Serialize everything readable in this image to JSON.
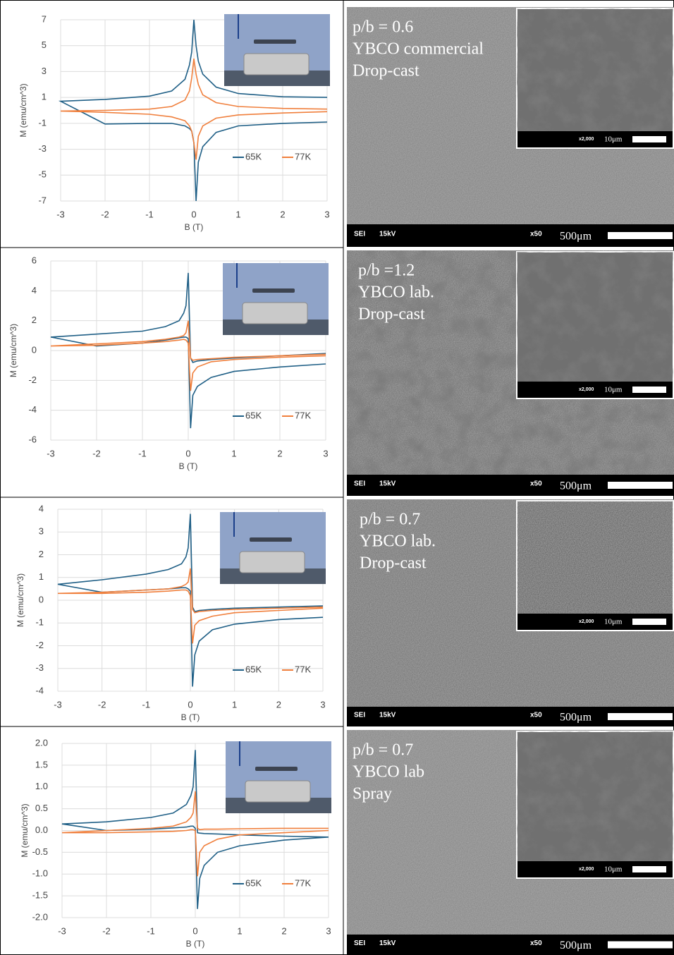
{
  "chart_data": [
    {
      "type": "line",
      "xlabel": "B (T)",
      "ylabel": "M (emu/cm^3)",
      "x": [
        3,
        2,
        1,
        0.5,
        0.2,
        0.1,
        0.05,
        0,
        -0.05,
        -0.1,
        -0.2,
        -0.5,
        -1,
        -2,
        -3,
        -2,
        -1,
        -0.5,
        -0.2,
        -0.1,
        -0.05,
        0,
        0.05,
        0.1,
        0.2,
        0.5,
        1,
        2,
        3
      ],
      "series": [
        {
          "name": "65K",
          "color": "#1f5f86",
          "values": [
            1.0,
            1.05,
            1.3,
            1.8,
            2.8,
            3.8,
            5,
            7,
            4.5,
            3.5,
            2.4,
            1.5,
            1.1,
            0.85,
            0.7,
            -1.05,
            -1.0,
            -1.0,
            -1.2,
            -1.4,
            -1.6,
            -2.5,
            -7,
            -4,
            -2.8,
            -1.7,
            -1.2,
            -1.0,
            -0.9
          ]
        },
        {
          "name": "77K",
          "color": "#f07f3c",
          "values": [
            0.1,
            0.15,
            0.3,
            0.6,
            1.2,
            2,
            2.8,
            4,
            2.5,
            1.5,
            0.8,
            0.3,
            0.1,
            0,
            -0.05,
            -0.15,
            -0.3,
            -0.5,
            -0.8,
            -1.2,
            -1.6,
            -2.5,
            -3.8,
            -2,
            -1.2,
            -0.6,
            -0.35,
            -0.2,
            -0.1
          ]
        }
      ],
      "xlim": [
        -3,
        3
      ],
      "xticks": [
        -3,
        -2,
        -1,
        0,
        1,
        2,
        3
      ],
      "ylim": [
        -7,
        7
      ],
      "yticks": [
        -7,
        -5,
        -3,
        -1,
        1,
        3,
        5,
        7
      ],
      "grid": true,
      "legend": "lower right"
    },
    {
      "type": "line",
      "xlabel": "B (T)",
      "ylabel": "M (emu/cm^3)",
      "x": [
        3,
        2,
        1,
        0.5,
        0.2,
        0.1,
        0.05,
        0,
        -0.05,
        -0.1,
        -0.2,
        -0.5,
        -1,
        -2,
        -3,
        -2,
        -1,
        -0.5,
        -0.2,
        -0.1,
        -0.05,
        0,
        0.05,
        0.1,
        0.2,
        0.5,
        1,
        2,
        3
      ],
      "series": [
        {
          "name": "65K",
          "color": "#1f5f86",
          "values": [
            -0.2,
            -0.35,
            -0.5,
            -0.6,
            -0.7,
            -0.8,
            -0.5,
            5.2,
            3,
            2.5,
            2,
            1.6,
            1.3,
            1.1,
            0.9,
            0.3,
            0.5,
            0.7,
            0.85,
            0.9,
            0.9,
            0.8,
            -5.2,
            -3,
            -2.4,
            -1.8,
            -1.4,
            -1.1,
            -0.9
          ]
        },
        {
          "name": "77K",
          "color": "#f07f3c",
          "values": [
            -0.25,
            -0.35,
            -0.45,
            -0.55,
            -0.6,
            -0.65,
            -0.5,
            2,
            1.2,
            1,
            0.9,
            0.75,
            0.6,
            0.45,
            0.3,
            0.35,
            0.5,
            0.6,
            0.7,
            0.75,
            0.7,
            0.5,
            -2.7,
            -1.5,
            -1.1,
            -0.75,
            -0.6,
            -0.45,
            -0.35
          ]
        }
      ],
      "xlim": [
        -3,
        3
      ],
      "xticks": [
        -3,
        -2,
        -1,
        0,
        1,
        2,
        3
      ],
      "ylim": [
        -6,
        6
      ],
      "yticks": [
        -6,
        -4,
        -2,
        0,
        2,
        4,
        6
      ],
      "grid": true,
      "legend": "lower right"
    },
    {
      "type": "line",
      "xlabel": "B (T)",
      "ylabel": "M (emu/cm^3)",
      "x": [
        3,
        2,
        1,
        0.5,
        0.2,
        0.1,
        0.05,
        0,
        -0.05,
        -0.1,
        -0.2,
        -0.5,
        -1,
        -2,
        -3,
        -2,
        -1,
        -0.5,
        -0.2,
        -0.1,
        -0.05,
        0,
        0.05,
        0.1,
        0.2,
        0.5,
        1,
        2,
        3
      ],
      "series": [
        {
          "name": "65K",
          "color": "#1f5f86",
          "values": [
            -0.25,
            -0.3,
            -0.35,
            -0.4,
            -0.45,
            -0.5,
            -0.3,
            3.8,
            2.3,
            1.9,
            1.6,
            1.35,
            1.15,
            0.9,
            0.7,
            0.35,
            0.45,
            0.5,
            0.55,
            0.55,
            0.5,
            0.4,
            -3.8,
            -2.4,
            -1.8,
            -1.3,
            -1.05,
            -0.85,
            -0.75
          ]
        },
        {
          "name": "77K",
          "color": "#f07f3c",
          "values": [
            -0.3,
            -0.35,
            -0.4,
            -0.45,
            -0.5,
            -0.55,
            -0.4,
            1.4,
            0.8,
            0.7,
            0.6,
            0.5,
            0.45,
            0.35,
            0.3,
            0.3,
            0.35,
            0.4,
            0.45,
            0.45,
            0.4,
            0.2,
            -1.9,
            -1.1,
            -0.9,
            -0.7,
            -0.55,
            -0.45,
            -0.35
          ]
        }
      ],
      "xlim": [
        -3,
        3
      ],
      "xticks": [
        -3,
        -2,
        -1,
        0,
        1,
        2,
        3
      ],
      "ylim": [
        -4,
        4
      ],
      "yticks": [
        -4,
        -3,
        -2,
        -1,
        0,
        1,
        2,
        3,
        4
      ],
      "grid": true,
      "legend": "lower right"
    },
    {
      "type": "line",
      "xlabel": "B (T)",
      "ylabel": "M (emu/cm^3)",
      "x": [
        3,
        2,
        1,
        0.5,
        0.2,
        0.1,
        0.05,
        0,
        -0.05,
        -0.1,
        -0.2,
        -0.5,
        -1,
        -2,
        -3,
        -2,
        -1,
        -0.5,
        -0.2,
        -0.1,
        -0.05,
        0,
        0.05,
        0.1,
        0.2,
        0.5,
        1,
        2,
        3
      ],
      "series": [
        {
          "name": "65K",
          "color": "#1f5f86",
          "values": [
            -0.15,
            -0.13,
            -0.1,
            -0.08,
            -0.07,
            -0.06,
            -0.05,
            1.85,
            1.0,
            0.8,
            0.6,
            0.4,
            0.3,
            0.2,
            0.15,
            0.0,
            0.03,
            0.06,
            0.08,
            0.1,
            0.1,
            0.05,
            -1.8,
            -1.1,
            -0.8,
            -0.5,
            -0.35,
            -0.22,
            -0.15
          ]
        },
        {
          "name": "77K",
          "color": "#f07f3c",
          "values": [
            0.05,
            0.05,
            0.04,
            0.03,
            0.03,
            0.02,
            0.05,
            0.9,
            0.4,
            0.3,
            0.2,
            0.1,
            0.05,
            0.0,
            -0.05,
            -0.05,
            -0.03,
            -0.02,
            0,
            0.02,
            0.02,
            0.0,
            -1.05,
            -0.5,
            -0.35,
            -0.2,
            -0.1,
            -0.05,
            0.0
          ]
        }
      ],
      "xlim": [
        -3,
        3
      ],
      "xticks": [
        -3,
        -2,
        -1,
        0,
        1,
        2,
        3
      ],
      "ylim": [
        -2,
        2
      ],
      "yticks": [
        {
          "value": -2,
          "label": "-2.0"
        },
        -1.5,
        {
          "value": -1,
          "label": "-1.0"
        },
        -0.5,
        {
          "value": 0,
          "label": "0.0"
        },
        0.5,
        {
          "value": 1,
          "label": "1.0"
        },
        1.5,
        {
          "value": 2,
          "label": "2.0"
        }
      ],
      "grid": true,
      "legend": "lower right"
    }
  ],
  "sem_panels": [
    {
      "lines": [
        "p/b = 0.6",
        "YBCO commercial",
        "Drop-cast"
      ],
      "inset_mag": "x2,000",
      "inset_scale": "10μm",
      "detector": "SEI",
      "voltage": "15kV",
      "mag": "x50",
      "scale": "500μm"
    },
    {
      "lines": [
        "p/b =1.2",
        "YBCO lab.",
        "Drop-cast"
      ],
      "inset_mag": "x2,000",
      "inset_scale": "10μm",
      "detector": "SEI",
      "voltage": "15kV",
      "mag": "x50",
      "scale": "500μm"
    },
    {
      "lines": [
        "p/b = 0.7",
        "YBCO lab.",
        "Drop-cast"
      ],
      "inset_mag": "x2,000",
      "inset_scale": "10μm",
      "detector": "SEI",
      "voltage": "15kV",
      "mag": "x50",
      "scale": "500μm"
    },
    {
      "lines": [
        "p/b = 0.7",
        "YBCO lab",
        "Spray"
      ],
      "inset_mag": "x2,000",
      "inset_scale": "10μm",
      "detector": "SEI",
      "voltage": "15kV",
      "mag": "x50",
      "scale": "500μm"
    }
  ]
}
